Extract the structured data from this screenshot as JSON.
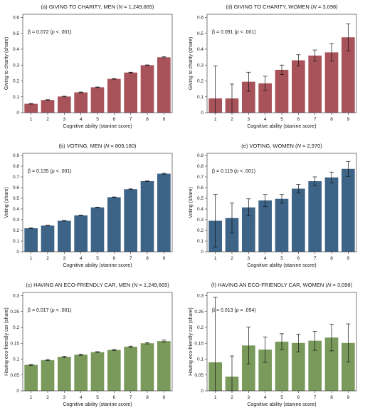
{
  "chart_data": [
    {
      "type": "bar",
      "title_parts": [
        "(a) ",
        "GIVING TO CHARITY, MEN (",
        "N",
        " = 1,249,665)"
      ],
      "annotation_parts": [
        "β = 0.072 (",
        "p",
        " < .001)"
      ],
      "xlabel": "Cognitive ability (stanine score)",
      "ylabel": "Giving to charity (share)",
      "categories": [
        "1",
        "2",
        "3",
        "4",
        "5",
        "6",
        "7",
        "8",
        "9"
      ],
      "values": [
        0.056,
        0.08,
        0.102,
        0.128,
        0.16,
        0.213,
        0.253,
        0.299,
        0.349
      ],
      "error": [
        0.002,
        0.002,
        0.002,
        0.002,
        0.002,
        0.002,
        0.002,
        0.002,
        0.003
      ],
      "ylim": [
        0,
        0.62
      ],
      "yticks": [
        "0",
        "0.1",
        "0.2",
        "0.3",
        "0.4",
        "0.5",
        "0.6"
      ],
      "ytick_values": [
        0,
        0.1,
        0.2,
        0.3,
        0.4,
        0.5,
        0.6
      ],
      "color": "#a8525a"
    },
    {
      "type": "bar",
      "title_parts": [
        "(d) ",
        "GIVING TO CHARITY, WOMEN (",
        "N",
        " = 3,098)"
      ],
      "annotation_parts": [
        "β = 0.091 (",
        "p",
        " < .001)"
      ],
      "xlabel": "Cognitive ability (stanine score)",
      "ylabel": "Giving to charity (share)",
      "categories": [
        "1",
        "2",
        "3",
        "4",
        "5",
        "6",
        "7",
        "8",
        "9"
      ],
      "values": [
        0.09,
        0.09,
        0.195,
        0.185,
        0.27,
        0.33,
        0.36,
        0.38,
        0.475
      ],
      "error": [
        0.205,
        0.09,
        0.06,
        0.045,
        0.03,
        0.035,
        0.035,
        0.055,
        0.085
      ],
      "ylim": [
        0,
        0.62
      ],
      "yticks": [
        "0",
        "0.1",
        "0.2",
        "0.3",
        "0.4",
        "0.5",
        "0.6"
      ],
      "ytick_values": [
        0,
        0.1,
        0.2,
        0.3,
        0.4,
        0.5,
        0.6
      ],
      "color": "#a8525a"
    },
    {
      "type": "bar",
      "title_parts": [
        "(b) ",
        "VOTING, MEN (",
        "N",
        " = 809,180)"
      ],
      "annotation_parts": [
        "β = 0.135 (",
        "p",
        " < .001)"
      ],
      "xlabel": "Cognitive ability (stanine score)",
      "ylabel": "Voting (share)",
      "categories": [
        "1",
        "2",
        "3",
        "4",
        "5",
        "6",
        "7",
        "8",
        "9"
      ],
      "values": [
        0.22,
        0.245,
        0.29,
        0.34,
        0.415,
        0.51,
        0.585,
        0.66,
        0.73
      ],
      "error": [
        0.004,
        0.003,
        0.003,
        0.003,
        0.003,
        0.003,
        0.003,
        0.003,
        0.004
      ],
      "ylim": [
        0,
        0.92
      ],
      "yticks": [
        "0",
        "0.1",
        "0.2",
        "0.3",
        "0.4",
        "0.5",
        "0.6",
        "0.7",
        "0.8",
        "0.9"
      ],
      "ytick_values": [
        0,
        0.1,
        0.2,
        0.3,
        0.4,
        0.5,
        0.6,
        0.7,
        0.8,
        0.9
      ],
      "color": "#3d6487"
    },
    {
      "type": "bar",
      "title_parts": [
        "(e) ",
        "VOTING, WOMEN (",
        "N",
        " = 2,970)"
      ],
      "annotation_parts": [
        "β = 0.119 (",
        "p",
        " < .001)"
      ],
      "xlabel": "Cognitive ability (stanine score)",
      "ylabel": "Voting (share)",
      "categories": [
        "1",
        "2",
        "3",
        "4",
        "5",
        "6",
        "7",
        "8",
        "9"
      ],
      "values": [
        0.29,
        0.315,
        0.415,
        0.48,
        0.495,
        0.59,
        0.66,
        0.695,
        0.775
      ],
      "error": [
        0.245,
        0.14,
        0.08,
        0.055,
        0.04,
        0.04,
        0.04,
        0.05,
        0.07
      ],
      "ylim": [
        0,
        0.92
      ],
      "yticks": [
        "0",
        "0.1",
        "0.2",
        "0.3",
        "0.4",
        "0.5",
        "0.6",
        "0.7",
        "0.8",
        "0.9"
      ],
      "ytick_values": [
        0,
        0.1,
        0.2,
        0.3,
        0.4,
        0.5,
        0.6,
        0.7,
        0.8,
        0.9
      ],
      "color": "#3d6487"
    },
    {
      "type": "bar",
      "title_parts": [
        "(c) ",
        "HAVING AN ECO-FRIENDLY CAR, MEN (",
        "N",
        " = 1,249,665)"
      ],
      "annotation_parts": [
        "β = 0.017 (",
        "p",
        " < .001)"
      ],
      "xlabel": "Cognitive ability (stanine score)",
      "ylabel": "Having eco-friendly car (share)",
      "categories": [
        "1",
        "2",
        "3",
        "4",
        "5",
        "6",
        "7",
        "8",
        "9"
      ],
      "values": [
        0.082,
        0.097,
        0.107,
        0.114,
        0.122,
        0.129,
        0.139,
        0.15,
        0.157
      ],
      "error": [
        0.002,
        0.002,
        0.002,
        0.002,
        0.002,
        0.002,
        0.002,
        0.002,
        0.003
      ],
      "ylim": [
        0,
        0.31
      ],
      "yticks": [
        "0",
        "0.05",
        "0.1",
        "0.15",
        "0.2",
        "0.25",
        "0.3"
      ],
      "ytick_values": [
        0,
        0.05,
        0.1,
        0.15,
        0.2,
        0.25,
        0.3
      ],
      "color": "#7a9a5c"
    },
    {
      "type": "bar",
      "title_parts": [
        "(f) ",
        "HAVING AN ECO-FRIENDLY CAR, WOMEN (",
        "N",
        " = 3,098)"
      ],
      "annotation_parts": [
        "β = 0.013 (",
        "p",
        " = .094)"
      ],
      "xlabel": "Cognitive ability (stanine score)",
      "ylabel": "Having eco-friendly car (share)",
      "categories": [
        "1",
        "2",
        "3",
        "4",
        "5",
        "6",
        "7",
        "8",
        "9"
      ],
      "values": [
        0.09,
        0.045,
        0.143,
        0.13,
        0.155,
        0.151,
        0.158,
        0.168,
        0.151
      ],
      "error": [
        0.205,
        0.065,
        0.058,
        0.04,
        0.025,
        0.028,
        0.03,
        0.042,
        0.06
      ],
      "ylim": [
        0,
        0.31
      ],
      "yticks": [
        "0",
        "0.05",
        "0.1",
        "0.15",
        "0.2",
        "0.25",
        "0.3"
      ],
      "ytick_values": [
        0,
        0.05,
        0.1,
        0.15,
        0.2,
        0.25,
        0.3
      ],
      "color": "#7a9a5c"
    }
  ]
}
